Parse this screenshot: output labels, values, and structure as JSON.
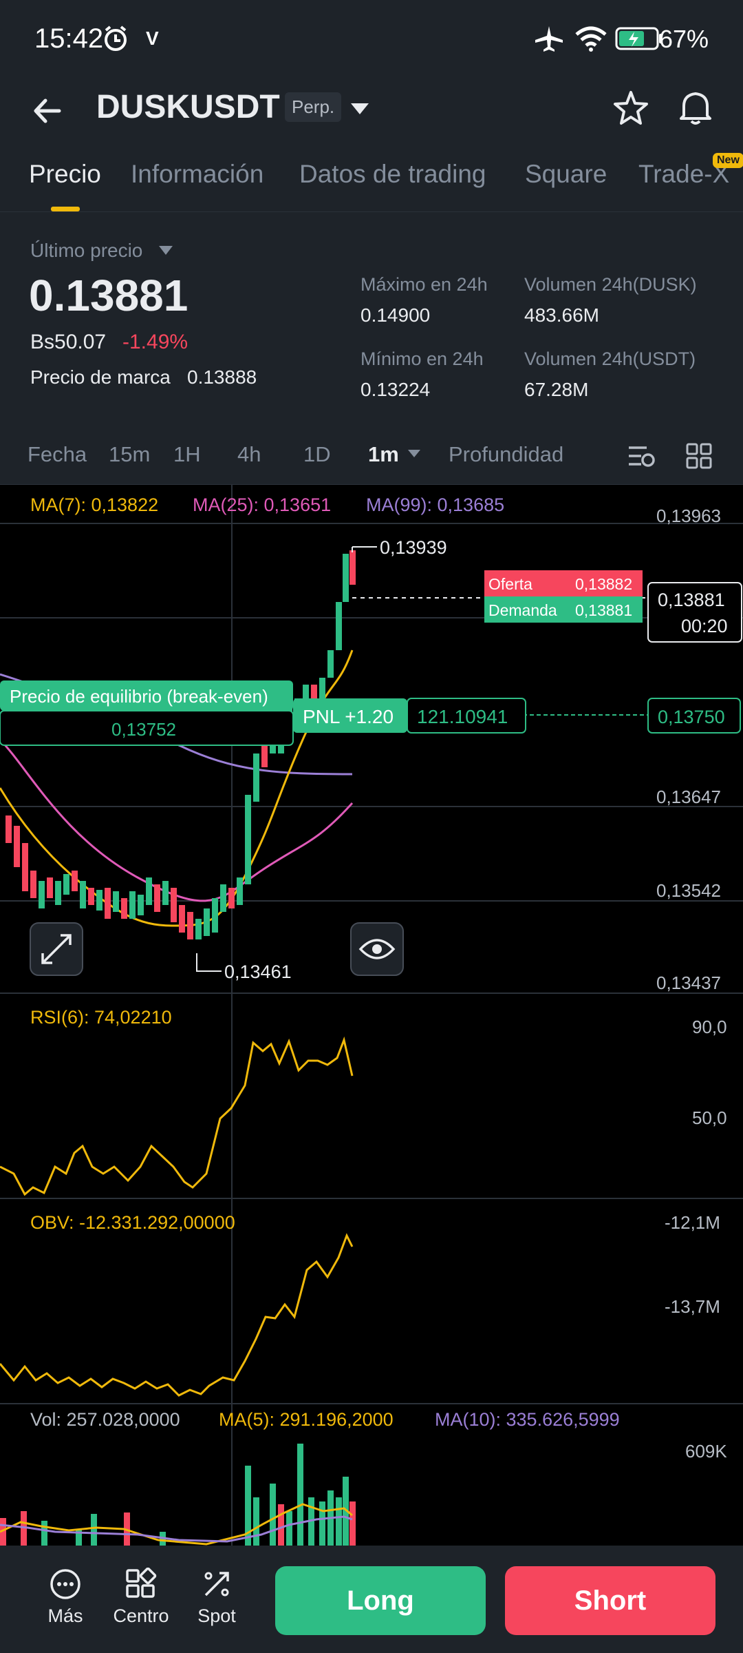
{
  "status": {
    "time": "15:42",
    "carrier_glyph": "V",
    "battery": "67%"
  },
  "header": {
    "symbol": "DUSKUSDT",
    "contract_type": "Perp."
  },
  "tabs": [
    {
      "label": "Precio",
      "active": true
    },
    {
      "label": "Información"
    },
    {
      "label": "Datos de trading"
    },
    {
      "label": "Square"
    },
    {
      "label": "Trade-X",
      "badge": "New"
    }
  ],
  "price": {
    "last_label": "Último precio",
    "last": "0.13881",
    "local": "Bs50.07",
    "change": "-1.49%",
    "mark_label": "Precio de marca",
    "mark": "0.13888",
    "high_label": "Máximo en 24h",
    "high": "0.14900",
    "low_label": "Mínimo en 24h",
    "low": "0.13224",
    "vol_dusk_label": "Volumen 24h(DUSK)",
    "vol_dusk": "483.66M",
    "vol_usdt_label": "Volumen 24h(USDT)",
    "vol_usdt": "67.28M"
  },
  "timeframes": {
    "items": [
      "Fecha",
      "15m",
      "1H",
      "4h",
      "1D"
    ],
    "selected": "1m",
    "depth": "Profundidad"
  },
  "chart": {
    "ma7": "MA(7): 0,13822",
    "ma25": "MA(25): 0,13651",
    "ma99": "MA(99): 0,13685",
    "price_axis": [
      "0,13963",
      "0,13647",
      "0,13542",
      "0,13437"
    ],
    "high_marker": "0,13939",
    "low_marker": "0,13461",
    "ask_label": "Oferta",
    "ask": "0,13882",
    "bid_label": "Demanda",
    "bid": "0,13881",
    "current_price": "0,13881",
    "countdown": "00:20",
    "breakeven_label": "Precio de equilibrio (break-even)",
    "breakeven": "0,13752",
    "pnl_label": "PNL +1.20",
    "position_size": "121.10941",
    "entry_price": "0,13750",
    "rsi_label": "RSI(6): 74,02210",
    "rsi_axis": [
      "90,0",
      "50,0"
    ],
    "obv_label": "OBV: -12.331.292,00000",
    "obv_axis": [
      "-12,1M",
      "-13,7M"
    ],
    "vol_label": "Vol: 257.028,0000",
    "vol_ma5": "MA(5): 291.196,2000",
    "vol_ma10": "MA(10): 335.626,5999",
    "vol_axis": "609K",
    "colors": {
      "up": "#2ebd85",
      "down": "#f6465d",
      "ma7": "#f0b90b",
      "ma25": "#e05ab8",
      "ma99": "#9b7fd6",
      "accent": "#f0b90b"
    }
  },
  "bottom": {
    "more": "Más",
    "center": "Centro",
    "spot": "Spot",
    "long": "Long",
    "short": "Short"
  }
}
